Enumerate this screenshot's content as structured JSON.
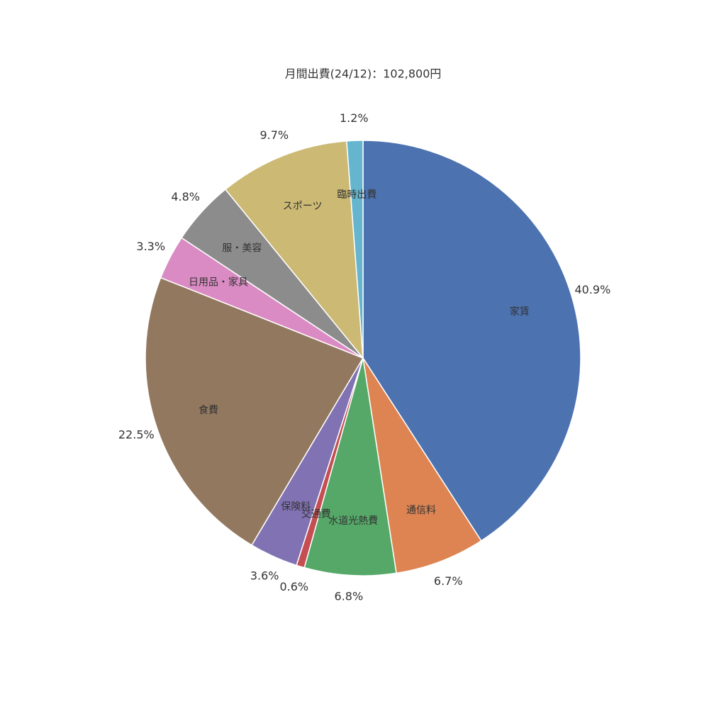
{
  "chart_data": {
    "type": "pie",
    "title": "月間出費(24/12)：102,800円",
    "categories": [
      "家賃",
      "通信料",
      "水道光熱費",
      "交通費",
      "保険料",
      "食費",
      "日用品・家具",
      "服・美容",
      "スポーツ",
      "臨時出費"
    ],
    "values": [
      40.9,
      6.7,
      6.8,
      0.6,
      3.6,
      22.5,
      3.3,
      4.8,
      9.7,
      1.2
    ],
    "value_labels": [
      "40.9%",
      "6.7%",
      "6.8%",
      "0.6%",
      "3.6%",
      "22.5%",
      "3.3%",
      "4.8%",
      "9.7%",
      "1.2%"
    ],
    "colors": [
      "#4c72b0",
      "#dd8452",
      "#55a868",
      "#c44e52",
      "#8172b3",
      "#937860",
      "#da8bc3",
      "#8c8c8c",
      "#ccb974",
      "#64b5cd"
    ]
  }
}
